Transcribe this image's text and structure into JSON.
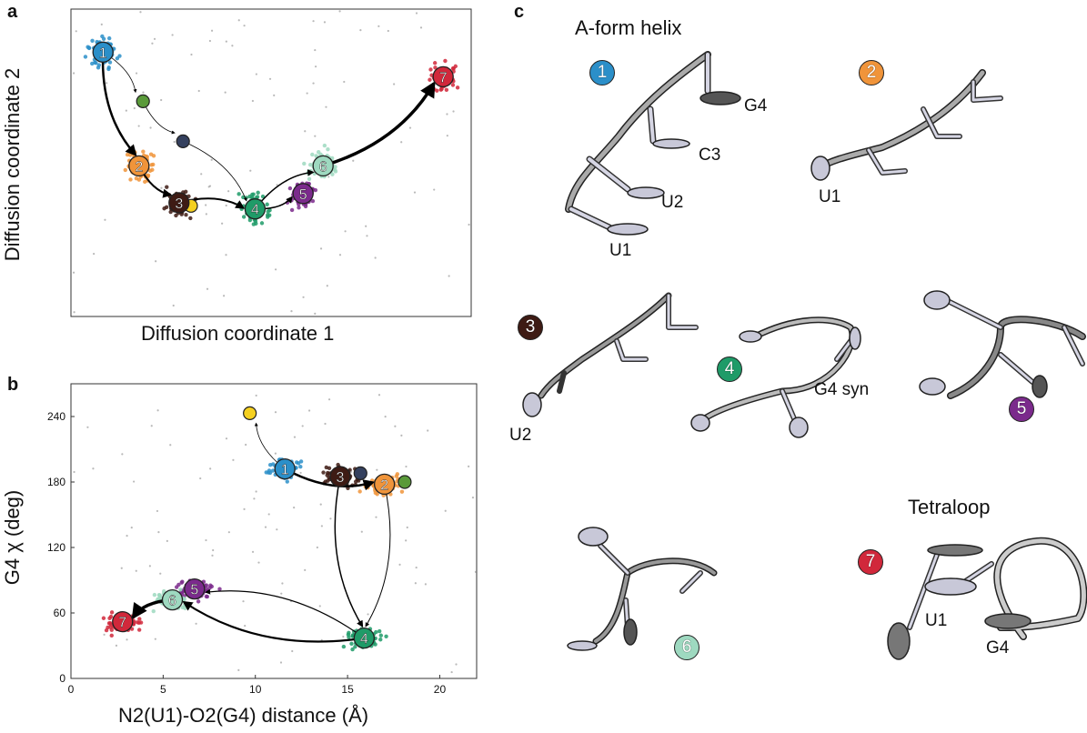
{
  "panel_labels": {
    "a": "a",
    "b": "b",
    "c": "c"
  },
  "state_colors": {
    "1": "#2b8fc9",
    "2": "#f0943a",
    "3": "#3e1b14",
    "4": "#1f9b68",
    "5": "#7b2a8c",
    "6": "#9ed9c0",
    "7": "#d1283b",
    "int_green": "#5a9a3a",
    "int_navy": "#34405e",
    "int_yellow": "#f5d020",
    "grey": "#8a8a8a"
  },
  "chart_data": [
    {
      "type": "scatter",
      "panel": "a",
      "xlabel": "Diffusion coordinate 1",
      "ylabel": "Diffusion coordinate 2",
      "ticks": "none",
      "grid": false,
      "note_units": "arbitrary diffusion-coordinate units (no ticks shown); values below on a 0-100 by 0-100 scale",
      "xlim": [
        0,
        100
      ],
      "ylim": [
        0,
        100
      ],
      "state_centers": [
        {
          "label": "1",
          "x": 8,
          "y": 86
        },
        {
          "label": "2",
          "x": 17,
          "y": 49
        },
        {
          "label": "3",
          "x": 27,
          "y": 37
        },
        {
          "label": "4",
          "x": 46,
          "y": 35
        },
        {
          "label": "5",
          "x": 58,
          "y": 40
        },
        {
          "label": "6",
          "x": 63,
          "y": 49
        },
        {
          "label": "7",
          "x": 93,
          "y": 78
        }
      ],
      "intermediates": [
        {
          "kind": "int_green",
          "x": 18,
          "y": 70
        },
        {
          "kind": "int_navy",
          "x": 28,
          "y": 57
        },
        {
          "kind": "int_yellow",
          "x": 30,
          "y": 36
        }
      ],
      "arrows": [
        {
          "from": "1",
          "to": "2",
          "weight": 2.5
        },
        {
          "from": "1",
          "to": "int_green",
          "weight": 0.8
        },
        {
          "from": "int_green",
          "to": "int_navy",
          "weight": 0.8
        },
        {
          "from": "int_navy",
          "to": "4",
          "weight": 0.8
        },
        {
          "from": "2",
          "to": "3",
          "weight": 2
        },
        {
          "from": "3",
          "to": "4",
          "weight": 2
        },
        {
          "from": "4",
          "to": "5",
          "weight": 1.5
        },
        {
          "from": "4",
          "to": "6",
          "weight": 1.5
        },
        {
          "from": "6",
          "to": "7",
          "weight": 3.5
        }
      ]
    },
    {
      "type": "scatter",
      "panel": "b",
      "xlabel": "N2(U1)-O2(G4) distance (Å)",
      "ylabel": "G4 χ (deg)",
      "xlim": [
        0,
        22
      ],
      "ylim": [
        0,
        270
      ],
      "xticks": [
        0,
        5,
        10,
        15,
        20
      ],
      "yticks": [
        0,
        60,
        120,
        180,
        240
      ],
      "grid": false,
      "state_centers": [
        {
          "label": "1",
          "x": 11.6,
          "y": 192
        },
        {
          "label": "2",
          "x": 17.0,
          "y": 178
        },
        {
          "label": "3",
          "x": 14.6,
          "y": 185
        },
        {
          "label": "4",
          "x": 15.9,
          "y": 37
        },
        {
          "label": "5",
          "x": 6.7,
          "y": 82
        },
        {
          "label": "6",
          "x": 5.5,
          "y": 72
        },
        {
          "label": "7",
          "x": 2.8,
          "y": 52
        }
      ],
      "intermediates": [
        {
          "kind": "int_yellow",
          "x": 9.7,
          "y": 243
        },
        {
          "kind": "int_navy",
          "x": 15.7,
          "y": 188
        },
        {
          "kind": "int_green",
          "x": 18.1,
          "y": 180
        }
      ],
      "arrows": [
        {
          "from": "1",
          "to": "2",
          "weight": 2.5
        },
        {
          "from": "1",
          "to": "int_yellow",
          "weight": 0.8
        },
        {
          "from": "3",
          "to": "4",
          "weight": 1.5
        },
        {
          "from": "2",
          "to": "4",
          "weight": 1
        },
        {
          "from": "4",
          "to": "5",
          "weight": 1.2
        },
        {
          "from": "4",
          "to": "6",
          "weight": 2.2
        },
        {
          "from": "6",
          "to": "7",
          "weight": 3.5
        }
      ]
    }
  ],
  "panel_c": {
    "titles": {
      "aform": "A-form helix",
      "tetraloop": "Tetraloop"
    },
    "badges": [
      "1",
      "2",
      "3",
      "4",
      "5",
      "6",
      "7"
    ],
    "labels": {
      "s1_g4": "G4",
      "s1_c3": "C3",
      "s1_u2": "U2",
      "s1_u1": "U1",
      "s2_u1": "U1",
      "s3_u2": "U2",
      "s4_g4syn": "G4 syn",
      "s7_u1": "U1",
      "s7_g4": "G4"
    }
  }
}
